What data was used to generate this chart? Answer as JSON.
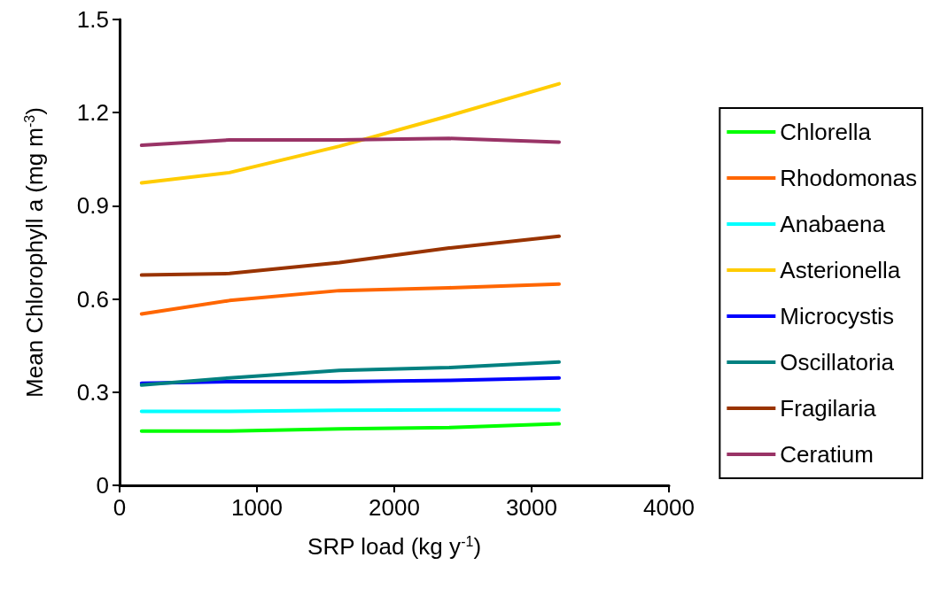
{
  "chart_data": {
    "type": "line",
    "xlabel": "SRP load (kg y$^{-1}$)",
    "ylabel": "Mean Chlorophyll a (mg m$^{-3}$)",
    "x": [
      160,
      800,
      1600,
      2400,
      3200
    ],
    "series": [
      {
        "name": "Chlorella",
        "color": "#00ff00",
        "values": [
          0.175,
          0.175,
          0.182,
          0.186,
          0.198
        ]
      },
      {
        "name": "Rhodomonas",
        "color": "#ff6600",
        "values": [
          0.552,
          0.595,
          0.627,
          0.636,
          0.648
        ]
      },
      {
        "name": "Anabaena",
        "color": "#00ffff",
        "values": [
          0.238,
          0.238,
          0.242,
          0.243,
          0.243
        ]
      },
      {
        "name": "Asterionella",
        "color": "#ffcc00",
        "values": [
          0.974,
          1.007,
          1.092,
          1.19,
          1.293
        ]
      },
      {
        "name": "Microcystis",
        "color": "#0000ff",
        "values": [
          0.329,
          0.334,
          0.334,
          0.338,
          0.346
        ]
      },
      {
        "name": "Oscillatoria",
        "color": "#008080",
        "values": [
          0.323,
          0.346,
          0.37,
          0.379,
          0.397
        ]
      },
      {
        "name": "Fragilaria",
        "color": "#993300",
        "values": [
          0.677,
          0.682,
          0.717,
          0.764,
          0.802
        ]
      },
      {
        "name": "Ceratium",
        "color": "#993366",
        "values": [
          1.095,
          1.112,
          1.112,
          1.117,
          1.105
        ]
      }
    ],
    "xlim": [
      0,
      4000
    ],
    "xticks": [
      0,
      1000,
      2000,
      3000,
      4000
    ],
    "ylim": [
      0,
      1.5
    ],
    "yticks": [
      0,
      0.3,
      0.6,
      0.9,
      1.2,
      1.5
    ],
    "grid": false,
    "legend": "right",
    "marker": "none",
    "line_style": "solid"
  }
}
